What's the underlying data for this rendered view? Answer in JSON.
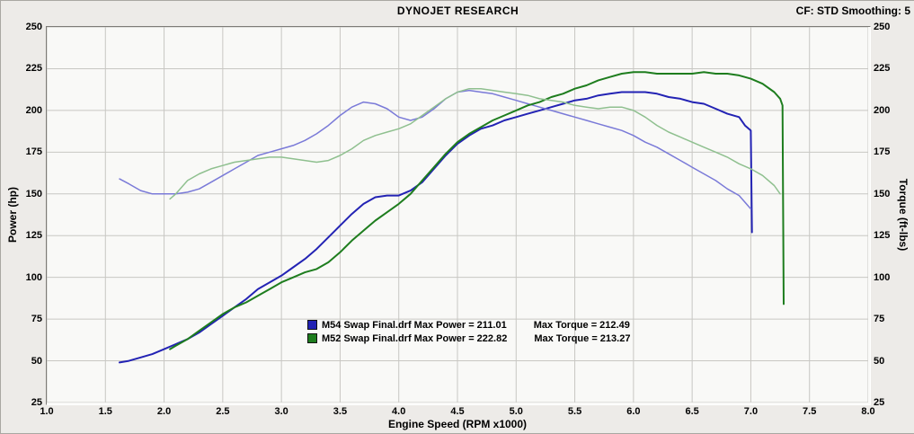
{
  "header": {
    "title": "DYNOJET RESEARCH",
    "cf_smoothing": "CF: STD  Smoothing: 5"
  },
  "chart_data": {
    "type": "line",
    "title": "DYNOJET RESEARCH",
    "xlabel": "Engine Speed (RPM x1000)",
    "ylabel_left": "Power (hp)",
    "ylabel_right": "Torque (ft-lbs)",
    "xlim": [
      1.0,
      8.0
    ],
    "ylim": [
      25,
      250
    ],
    "x_ticks": [
      "1.0",
      "1.5",
      "2.0",
      "2.5",
      "3.0",
      "3.5",
      "4.0",
      "4.5",
      "5.0",
      "5.5",
      "6.0",
      "6.5",
      "7.0",
      "7.5",
      "8.0"
    ],
    "y_ticks": [
      "250",
      "225",
      "200",
      "175",
      "150",
      "125",
      "100",
      "75",
      "50",
      "25"
    ],
    "grid": true,
    "legend_position": "inside-bottom-center",
    "legend": [
      {
        "color": "#2323b4",
        "file": "M54 Swap Final.drf",
        "max_power": 211.01,
        "max_torque": 212.49,
        "label_left": "M54 Swap Final.drf Max Power = 211.01",
        "label_right": "Max Torque = 212.49"
      },
      {
        "color": "#1e7d1e",
        "file": "M52 Swap Final.drf",
        "max_power": 222.82,
        "max_torque": 213.27,
        "label_left": "M52 Swap Final.drf Max Power = 222.82",
        "label_right": "Max Torque = 213.27"
      }
    ],
    "series": [
      {
        "id": "m54-power-curve",
        "name": "M54 Power (hp)",
        "color": "#2323b4",
        "width": 2,
        "points": [
          [
            1.62,
            49
          ],
          [
            1.7,
            50
          ],
          [
            1.8,
            52
          ],
          [
            1.9,
            54
          ],
          [
            2.0,
            57
          ],
          [
            2.1,
            60
          ],
          [
            2.2,
            63
          ],
          [
            2.3,
            67
          ],
          [
            2.4,
            72
          ],
          [
            2.5,
            77
          ],
          [
            2.6,
            82
          ],
          [
            2.7,
            87
          ],
          [
            2.8,
            93
          ],
          [
            2.9,
            97
          ],
          [
            3.0,
            101
          ],
          [
            3.1,
            106
          ],
          [
            3.2,
            111
          ],
          [
            3.3,
            117
          ],
          [
            3.4,
            124
          ],
          [
            3.5,
            131
          ],
          [
            3.6,
            138
          ],
          [
            3.7,
            144
          ],
          [
            3.8,
            148
          ],
          [
            3.9,
            149
          ],
          [
            4.0,
            149
          ],
          [
            4.1,
            152
          ],
          [
            4.2,
            157
          ],
          [
            4.3,
            165
          ],
          [
            4.4,
            173
          ],
          [
            4.5,
            180
          ],
          [
            4.6,
            185
          ],
          [
            4.7,
            189
          ],
          [
            4.8,
            191
          ],
          [
            4.9,
            194
          ],
          [
            5.0,
            196
          ],
          [
            5.1,
            198
          ],
          [
            5.2,
            200
          ],
          [
            5.3,
            202
          ],
          [
            5.4,
            204
          ],
          [
            5.5,
            206
          ],
          [
            5.6,
            207
          ],
          [
            5.7,
            209
          ],
          [
            5.8,
            210
          ],
          [
            5.9,
            211
          ],
          [
            6.0,
            211
          ],
          [
            6.1,
            211
          ],
          [
            6.2,
            210
          ],
          [
            6.3,
            208
          ],
          [
            6.4,
            207
          ],
          [
            6.5,
            205
          ],
          [
            6.6,
            204
          ],
          [
            6.7,
            201
          ],
          [
            6.8,
            198
          ],
          [
            6.9,
            196
          ],
          [
            6.95,
            191
          ],
          [
            7.0,
            188
          ],
          [
            7.01,
            127
          ]
        ]
      },
      {
        "id": "m54-torque-curve",
        "name": "M54 Torque (ft-lbs)",
        "color": "#7a7ad8",
        "width": 1.5,
        "points": [
          [
            1.62,
            159
          ],
          [
            1.7,
            156
          ],
          [
            1.8,
            152
          ],
          [
            1.9,
            150
          ],
          [
            2.0,
            150
          ],
          [
            2.1,
            150
          ],
          [
            2.2,
            151
          ],
          [
            2.3,
            153
          ],
          [
            2.4,
            157
          ],
          [
            2.5,
            161
          ],
          [
            2.6,
            165
          ],
          [
            2.7,
            169
          ],
          [
            2.8,
            173
          ],
          [
            2.9,
            175
          ],
          [
            3.0,
            177
          ],
          [
            3.1,
            179
          ],
          [
            3.2,
            182
          ],
          [
            3.3,
            186
          ],
          [
            3.4,
            191
          ],
          [
            3.5,
            197
          ],
          [
            3.6,
            202
          ],
          [
            3.7,
            205
          ],
          [
            3.8,
            204
          ],
          [
            3.9,
            201
          ],
          [
            4.0,
            196
          ],
          [
            4.1,
            194
          ],
          [
            4.2,
            196
          ],
          [
            4.3,
            201
          ],
          [
            4.4,
            207
          ],
          [
            4.5,
            211
          ],
          [
            4.6,
            212
          ],
          [
            4.7,
            211
          ],
          [
            4.8,
            210
          ],
          [
            4.9,
            208
          ],
          [
            5.0,
            206
          ],
          [
            5.1,
            204
          ],
          [
            5.2,
            202
          ],
          [
            5.3,
            200
          ],
          [
            5.4,
            198
          ],
          [
            5.5,
            196
          ],
          [
            5.6,
            194
          ],
          [
            5.7,
            192
          ],
          [
            5.8,
            190
          ],
          [
            5.9,
            188
          ],
          [
            6.0,
            185
          ],
          [
            6.1,
            181
          ],
          [
            6.2,
            178
          ],
          [
            6.3,
            174
          ],
          [
            6.4,
            170
          ],
          [
            6.5,
            166
          ],
          [
            6.6,
            162
          ],
          [
            6.7,
            158
          ],
          [
            6.8,
            153
          ],
          [
            6.9,
            149
          ],
          [
            7.0,
            141
          ]
        ]
      },
      {
        "id": "m52-power-curve",
        "name": "M52 Power (hp)",
        "color": "#1e7d1e",
        "width": 2,
        "points": [
          [
            2.05,
            57
          ],
          [
            2.1,
            59
          ],
          [
            2.2,
            63
          ],
          [
            2.3,
            68
          ],
          [
            2.4,
            73
          ],
          [
            2.5,
            78
          ],
          [
            2.6,
            82
          ],
          [
            2.7,
            85
          ],
          [
            2.8,
            89
          ],
          [
            2.9,
            93
          ],
          [
            3.0,
            97
          ],
          [
            3.1,
            100
          ],
          [
            3.2,
            103
          ],
          [
            3.3,
            105
          ],
          [
            3.4,
            109
          ],
          [
            3.5,
            115
          ],
          [
            3.6,
            122
          ],
          [
            3.7,
            128
          ],
          [
            3.8,
            134
          ],
          [
            3.9,
            139
          ],
          [
            4.0,
            144
          ],
          [
            4.1,
            150
          ],
          [
            4.2,
            158
          ],
          [
            4.3,
            166
          ],
          [
            4.4,
            174
          ],
          [
            4.5,
            181
          ],
          [
            4.6,
            186
          ],
          [
            4.7,
            190
          ],
          [
            4.8,
            194
          ],
          [
            4.9,
            197
          ],
          [
            5.0,
            200
          ],
          [
            5.1,
            203
          ],
          [
            5.2,
            205
          ],
          [
            5.3,
            208
          ],
          [
            5.4,
            210
          ],
          [
            5.5,
            213
          ],
          [
            5.6,
            215
          ],
          [
            5.7,
            218
          ],
          [
            5.8,
            220
          ],
          [
            5.9,
            222
          ],
          [
            6.0,
            223
          ],
          [
            6.1,
            223
          ],
          [
            6.2,
            222
          ],
          [
            6.3,
            222
          ],
          [
            6.4,
            222
          ],
          [
            6.5,
            222
          ],
          [
            6.6,
            223
          ],
          [
            6.7,
            222
          ],
          [
            6.8,
            222
          ],
          [
            6.9,
            221
          ],
          [
            7.0,
            219
          ],
          [
            7.1,
            216
          ],
          [
            7.2,
            211
          ],
          [
            7.25,
            207
          ],
          [
            7.27,
            203
          ],
          [
            7.28,
            84
          ]
        ]
      },
      {
        "id": "m52-torque-curve",
        "name": "M52 Torque (ft-lbs)",
        "color": "#8fc08f",
        "width": 1.5,
        "points": [
          [
            2.05,
            147
          ],
          [
            2.1,
            150
          ],
          [
            2.15,
            154
          ],
          [
            2.2,
            158
          ],
          [
            2.3,
            162
          ],
          [
            2.4,
            165
          ],
          [
            2.5,
            167
          ],
          [
            2.6,
            169
          ],
          [
            2.7,
            170
          ],
          [
            2.8,
            171
          ],
          [
            2.9,
            172
          ],
          [
            3.0,
            172
          ],
          [
            3.1,
            171
          ],
          [
            3.2,
            170
          ],
          [
            3.3,
            169
          ],
          [
            3.4,
            170
          ],
          [
            3.5,
            173
          ],
          [
            3.6,
            177
          ],
          [
            3.7,
            182
          ],
          [
            3.8,
            185
          ],
          [
            3.9,
            187
          ],
          [
            4.0,
            189
          ],
          [
            4.1,
            192
          ],
          [
            4.2,
            197
          ],
          [
            4.3,
            202
          ],
          [
            4.4,
            207
          ],
          [
            4.5,
            211
          ],
          [
            4.6,
            213
          ],
          [
            4.7,
            213
          ],
          [
            4.8,
            212
          ],
          [
            4.9,
            211
          ],
          [
            5.0,
            210
          ],
          [
            5.1,
            209
          ],
          [
            5.2,
            207
          ],
          [
            5.3,
            206
          ],
          [
            5.4,
            205
          ],
          [
            5.5,
            203
          ],
          [
            5.6,
            202
          ],
          [
            5.7,
            201
          ],
          [
            5.8,
            202
          ],
          [
            5.9,
            202
          ],
          [
            6.0,
            200
          ],
          [
            6.1,
            196
          ],
          [
            6.2,
            191
          ],
          [
            6.3,
            187
          ],
          [
            6.4,
            184
          ],
          [
            6.5,
            181
          ],
          [
            6.6,
            178
          ],
          [
            6.7,
            175
          ],
          [
            6.8,
            172
          ],
          [
            6.9,
            168
          ],
          [
            7.0,
            165
          ],
          [
            7.1,
            161
          ],
          [
            7.2,
            155
          ],
          [
            7.25,
            150
          ]
        ]
      }
    ]
  }
}
